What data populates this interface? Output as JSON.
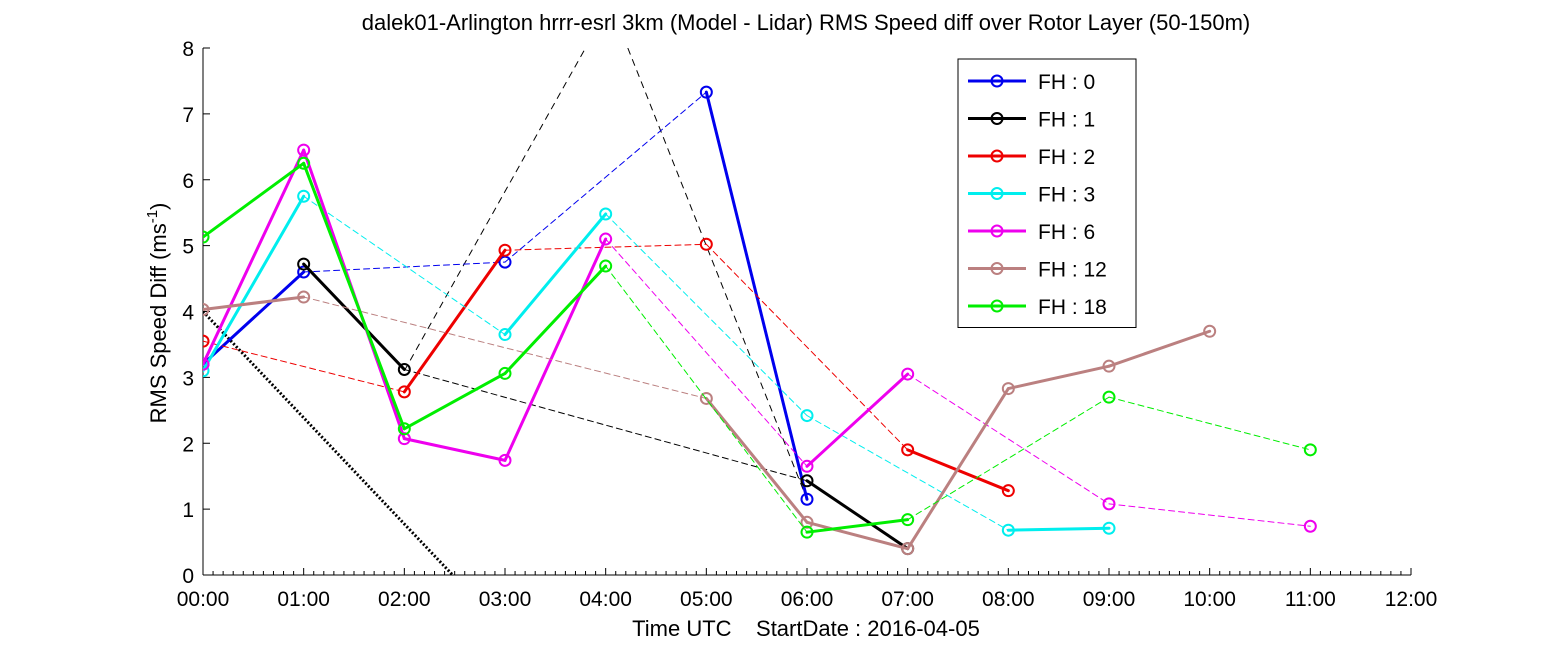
{
  "chart_data": {
    "type": "line",
    "title": "dalek01-Arlington hrrr-esrl 3km (Model - Lidar) RMS Speed diff over Rotor Layer (50-150m)",
    "xlabel": "Time UTC    StartDate : 2016-04-05",
    "ylabel": "RMS Speed Diff (ms",
    "ylabel_sup": "-1",
    "ylabel_end": ")",
    "xlim": [
      0,
      12
    ],
    "ylim": [
      0,
      8
    ],
    "x_ticks": [
      "00:00",
      "01:00",
      "02:00",
      "03:00",
      "04:00",
      "05:00",
      "06:00",
      "07:00",
      "08:00",
      "09:00",
      "10:00",
      "11:00",
      "12:00"
    ],
    "y_ticks": [
      "0",
      "1",
      "2",
      "3",
      "4",
      "5",
      "6",
      "7",
      "8"
    ],
    "grid": false,
    "legend_position": "top-right",
    "series": [
      {
        "name": "FH : 0",
        "color": "#0000ee",
        "x": [
          0,
          1,
          3,
          5,
          6
        ],
        "y": [
          3.2,
          4.6,
          4.75,
          7.33,
          1.15
        ]
      },
      {
        "name": "FH : 1",
        "color": "#000000",
        "x": [
          1,
          2,
          6,
          7
        ],
        "y": [
          4.72,
          3.12,
          1.43,
          0.4
        ]
      },
      {
        "name": "FH : 2",
        "color": "#ee0000",
        "x": [
          0,
          2,
          3,
          5,
          7,
          8
        ],
        "y": [
          3.55,
          2.78,
          4.93,
          5.02,
          1.9,
          1.28
        ]
      },
      {
        "name": "FH : 3",
        "color": "#00eeee",
        "x": [
          0,
          1,
          3,
          4,
          6,
          8,
          9
        ],
        "y": [
          3.1,
          5.75,
          3.65,
          5.48,
          2.42,
          0.68,
          0.71
        ]
      },
      {
        "name": "FH : 6",
        "color": "#ee00ee",
        "x": [
          0,
          1,
          2,
          3,
          4,
          6,
          7,
          9,
          11
        ],
        "y": [
          3.2,
          6.45,
          2.07,
          1.74,
          5.1,
          1.65,
          3.05,
          1.08,
          0.74
        ]
      },
      {
        "name": "FH : 12",
        "color": "#bb8080",
        "x": [
          0,
          1,
          5,
          6,
          7,
          8,
          9,
          10
        ],
        "y": [
          4.03,
          4.22,
          2.68,
          0.8,
          0.4,
          2.83,
          3.17,
          3.7
        ]
      },
      {
        "name": "FH : 18",
        "color": "#00ee00",
        "x": [
          0,
          1,
          2,
          3,
          4,
          6,
          7,
          9,
          11
        ],
        "y": [
          5.13,
          6.25,
          2.22,
          3.06,
          4.69,
          0.65,
          0.84,
          2.7,
          1.9
        ]
      }
    ],
    "extra_lines": [
      {
        "color": "#000000",
        "style": "dashed",
        "x": [
          2,
          3.8
        ],
        "y": [
          3.1,
          8.0
        ]
      },
      {
        "color": "#000000",
        "style": "dashed",
        "x": [
          4.22,
          6
        ],
        "y": [
          8.0,
          1.15
        ]
      },
      {
        "color": "#000000",
        "style": "dotted",
        "x": [
          0,
          2.48
        ],
        "y": [
          4.0,
          0
        ]
      }
    ]
  }
}
